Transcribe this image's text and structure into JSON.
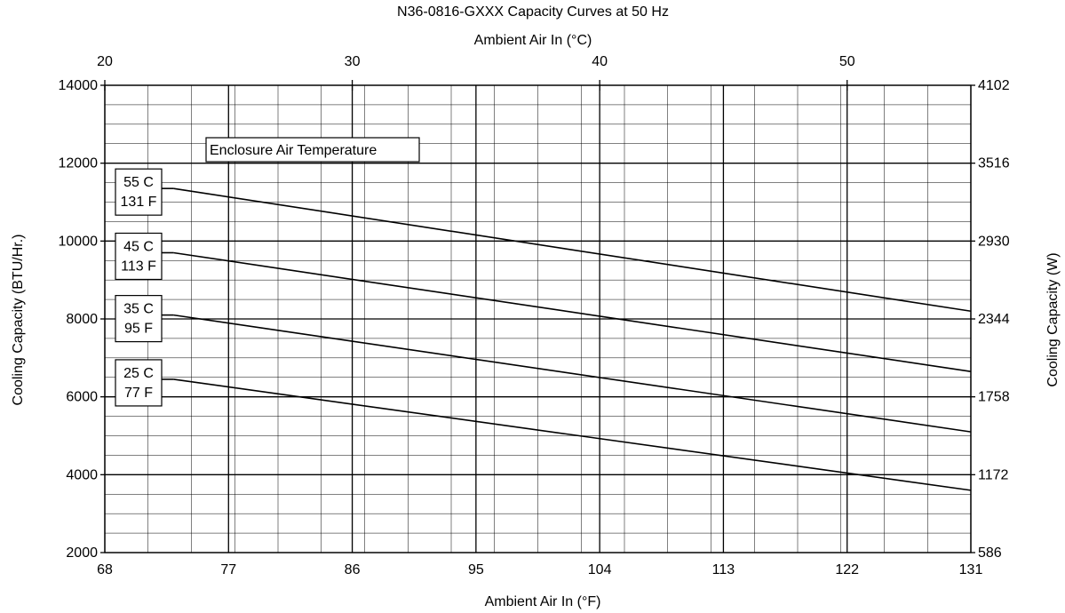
{
  "chart_data": {
    "type": "line",
    "title": "N36-0816-GXXX Capacity Curves at 50 Hz",
    "top_axis_label": "Ambient Air In (°C)",
    "top_ticks": [
      "20",
      "30",
      "40",
      "50"
    ],
    "top_tick_values": [
      20,
      30,
      40,
      50
    ],
    "xlabel": "Ambient Air In (°F)",
    "x_ticks": [
      "68",
      "77",
      "86",
      "95",
      "104",
      "113",
      "122",
      "131"
    ],
    "x_tick_values": [
      68,
      77,
      86,
      95,
      104,
      113,
      122,
      131
    ],
    "xlim": [
      68,
      131
    ],
    "ylabel": "Cooling Capacity (BTU/Hr.)",
    "y_ticks": [
      "2000",
      "4000",
      "6000",
      "8000",
      "10000",
      "12000",
      "14000"
    ],
    "y_tick_values": [
      2000,
      4000,
      6000,
      8000,
      10000,
      12000,
      14000
    ],
    "ylim": [
      2000,
      14000
    ],
    "right_axis_label": "Cooling Capacity (W)",
    "right_ticks": [
      "586",
      "1172",
      "1758",
      "2344",
      "2930",
      "3516",
      "4102"
    ],
    "legend_title": "Enclosure Air Temperature",
    "grid": true,
    "series": [
      {
        "name_lines": [
          "55 C",
          "131 F"
        ],
        "x": [
          73,
          131
        ],
        "y": [
          11350,
          8200
        ]
      },
      {
        "name_lines": [
          "45 C",
          "113 F"
        ],
        "x": [
          73,
          131
        ],
        "y": [
          9700,
          6650
        ]
      },
      {
        "name_lines": [
          "35 C",
          "95 F"
        ],
        "x": [
          73,
          131
        ],
        "y": [
          8100,
          5100
        ]
      },
      {
        "name_lines": [
          "25 C",
          "77 F"
        ],
        "x": [
          73,
          131
        ],
        "y": [
          6450,
          3600
        ]
      }
    ]
  }
}
